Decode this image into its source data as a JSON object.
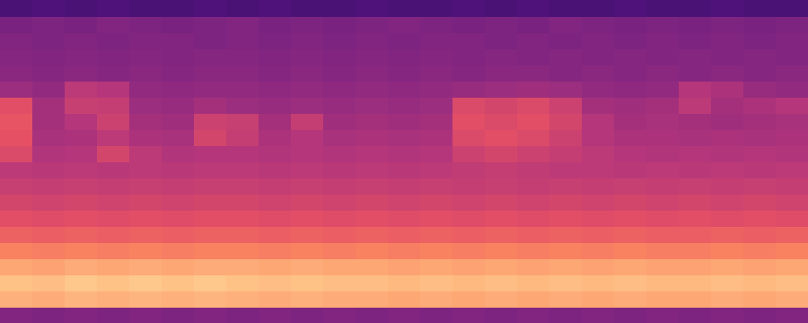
{
  "chart_data": {
    "type": "heatmap",
    "tick_labels": false,
    "x": [
      0,
      1,
      2,
      3,
      4,
      5,
      6,
      7,
      8,
      9,
      10,
      11,
      12,
      13,
      14,
      15,
      16,
      17,
      18,
      19,
      20,
      21,
      22,
      23,
      24
    ],
    "y": [
      0,
      1,
      2,
      3,
      4,
      5,
      6,
      7,
      8,
      9,
      10,
      11,
      12,
      13,
      14,
      15,
      16,
      17,
      18,
      19
    ],
    "xlim": [
      -0.5,
      24.5
    ],
    "ylim": [
      -0.5,
      19.5
    ],
    "zlim": [
      0,
      100
    ],
    "cells": [
      [
        38,
        37,
        38,
        37,
        38,
        37,
        38,
        37,
        38,
        37,
        38,
        37,
        38,
        37,
        38,
        37,
        38,
        37,
        38,
        37,
        38,
        37,
        38,
        37,
        38
      ],
      [
        84,
        83,
        85,
        84,
        85,
        84,
        85,
        84,
        83,
        84,
        83,
        83,
        82,
        83,
        82,
        83,
        82,
        83,
        82,
        83,
        82,
        82,
        83,
        82,
        83
      ],
      [
        88,
        87,
        89,
        88,
        89,
        88,
        89,
        88,
        87,
        88,
        87,
        87,
        86,
        87,
        86,
        87,
        86,
        87,
        86,
        87,
        86,
        86,
        87,
        86,
        87
      ],
      [
        82,
        81,
        83,
        82,
        83,
        82,
        83,
        83,
        82,
        83,
        82,
        82,
        81,
        82,
        81,
        82,
        81,
        82,
        81,
        82,
        81,
        81,
        82,
        81,
        82
      ],
      [
        74,
        73,
        74,
        73,
        74,
        73,
        74,
        74,
        73,
        74,
        73,
        74,
        73,
        74,
        73,
        74,
        73,
        74,
        73,
        74,
        73,
        73,
        74,
        73,
        74
      ],
      [
        67,
        66,
        67,
        66,
        67,
        66,
        67,
        67,
        66,
        67,
        66,
        67,
        66,
        67,
        66,
        67,
        66,
        67,
        66,
        67,
        66,
        66,
        67,
        66,
        67
      ],
      [
        62,
        61,
        62,
        61,
        62,
        61,
        62,
        62,
        61,
        62,
        61,
        62,
        61,
        62,
        61,
        62,
        61,
        62,
        61,
        62,
        61,
        62,
        61,
        62,
        61
      ],
      [
        58,
        57,
        58,
        57,
        58,
        57,
        58,
        58,
        57,
        58,
        57,
        58,
        57,
        58,
        57,
        58,
        57,
        58,
        57,
        58,
        57,
        58,
        57,
        58,
        57
      ],
      [
        55,
        54,
        55,
        54,
        55,
        54,
        55,
        55,
        54,
        55,
        54,
        55,
        54,
        55,
        54,
        55,
        54,
        55,
        54,
        55,
        54,
        55,
        54,
        55,
        54
      ],
      [
        52,
        51,
        52,
        51,
        52,
        51,
        52,
        52,
        51,
        52,
        51,
        52,
        51,
        52,
        53,
        54,
        53,
        52,
        52,
        51,
        52,
        51,
        52,
        51,
        52
      ],
      [
        60,
        49,
        50,
        58,
        52,
        49,
        50,
        50,
        49,
        50,
        49,
        50,
        49,
        50,
        56,
        58,
        56,
        54,
        52,
        50,
        49,
        50,
        49,
        50,
        49
      ],
      [
        63,
        47,
        48,
        52,
        48,
        47,
        58,
        54,
        48,
        50,
        47,
        48,
        47,
        48,
        60,
        62,
        60,
        56,
        50,
        48,
        48,
        47,
        48,
        47,
        48
      ],
      [
        64,
        46,
        50,
        56,
        46,
        45,
        56,
        55,
        46,
        54,
        45,
        46,
        45,
        46,
        62,
        60,
        62,
        58,
        50,
        46,
        47,
        46,
        45,
        46,
        47
      ],
      [
        62,
        46,
        55,
        54,
        44,
        43,
        46,
        44,
        43,
        44,
        43,
        44,
        43,
        44,
        60,
        58,
        60,
        56,
        46,
        45,
        46,
        52,
        46,
        48,
        50
      ],
      [
        44,
        42,
        52,
        50,
        42,
        41,
        42,
        42,
        41,
        42,
        41,
        42,
        41,
        42,
        43,
        44,
        45,
        44,
        42,
        41,
        42,
        50,
        48,
        43,
        42
      ],
      [
        40,
        39,
        40,
        39,
        40,
        39,
        40,
        40,
        39,
        40,
        39,
        40,
        39,
        40,
        39,
        40,
        40,
        39,
        40,
        39,
        40,
        39,
        40,
        39,
        40
      ],
      [
        39,
        38,
        39,
        38,
        39,
        38,
        39,
        39,
        38,
        39,
        38,
        39,
        38,
        39,
        38,
        39,
        38,
        39,
        38,
        39,
        38,
        39,
        38,
        39,
        38
      ],
      [
        38,
        37,
        38,
        37,
        38,
        38,
        37,
        38,
        37,
        38,
        37,
        38,
        37,
        38,
        38,
        37,
        38,
        37,
        38,
        37,
        38,
        37,
        38,
        37,
        38
      ],
      [
        36,
        37,
        36,
        38,
        37,
        36,
        37,
        38,
        36,
        37,
        36,
        37,
        38,
        37,
        36,
        37,
        36,
        38,
        37,
        36,
        37,
        36,
        37,
        36,
        37
      ],
      [
        24,
        25,
        24,
        25,
        24,
        24,
        25,
        24,
        25,
        24,
        24,
        25,
        24,
        24,
        25,
        24,
        25,
        24,
        24,
        25,
        24,
        24,
        25,
        24,
        24
      ]
    ]
  }
}
